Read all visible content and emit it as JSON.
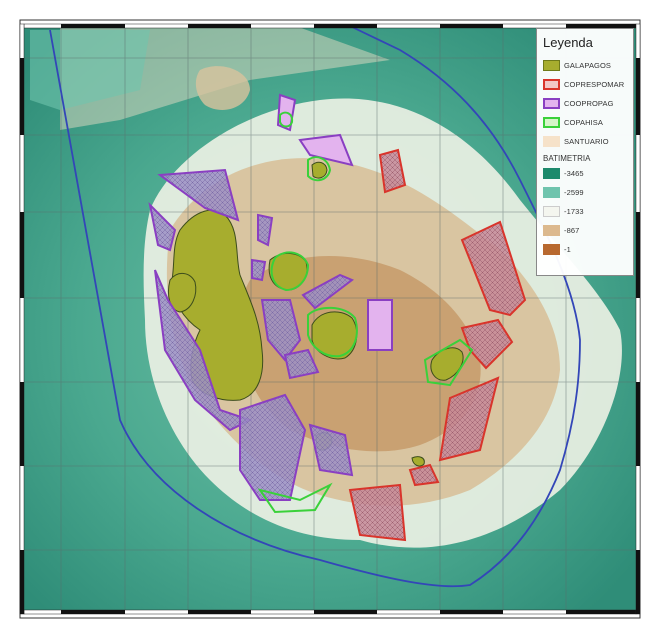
{
  "legend": {
    "title": "Leyenda",
    "zones": [
      {
        "label": "GALAPAGOS",
        "fill": "#a7ad2e",
        "stroke": "#6f7a1a"
      },
      {
        "label": "COPRESPOMAR",
        "fill": "#f2c6c6",
        "stroke": "#d9342b"
      },
      {
        "label": "COOPROPAG",
        "fill": "#e3b3ee",
        "stroke": "#8a3fc2"
      },
      {
        "label": "COPAHISA",
        "fill": "#d6f5c9",
        "stroke": "#3ad13a"
      },
      {
        "label": "SANTUARIO",
        "fill": "#f6e2c9",
        "stroke": "#f6e2c9"
      }
    ],
    "bathymetry_title": "BATIMETRIA",
    "bathymetry": [
      {
        "label": "-3465",
        "color": "#1d8a6c"
      },
      {
        "label": "-2599",
        "color": "#6fc4ad"
      },
      {
        "label": "-1733",
        "color": "#f4f6ef"
      },
      {
        "label": "-867",
        "color": "#dcb98e"
      },
      {
        "label": "-1",
        "color": "#b8692f"
      }
    ]
  },
  "colors": {
    "deep_sea": "#3f9d86",
    "mid_sea": "#7cc3aa",
    "shallow": "#d8ccaa",
    "plateau": "#c59a6a",
    "reserve_line": "#3346b8"
  }
}
